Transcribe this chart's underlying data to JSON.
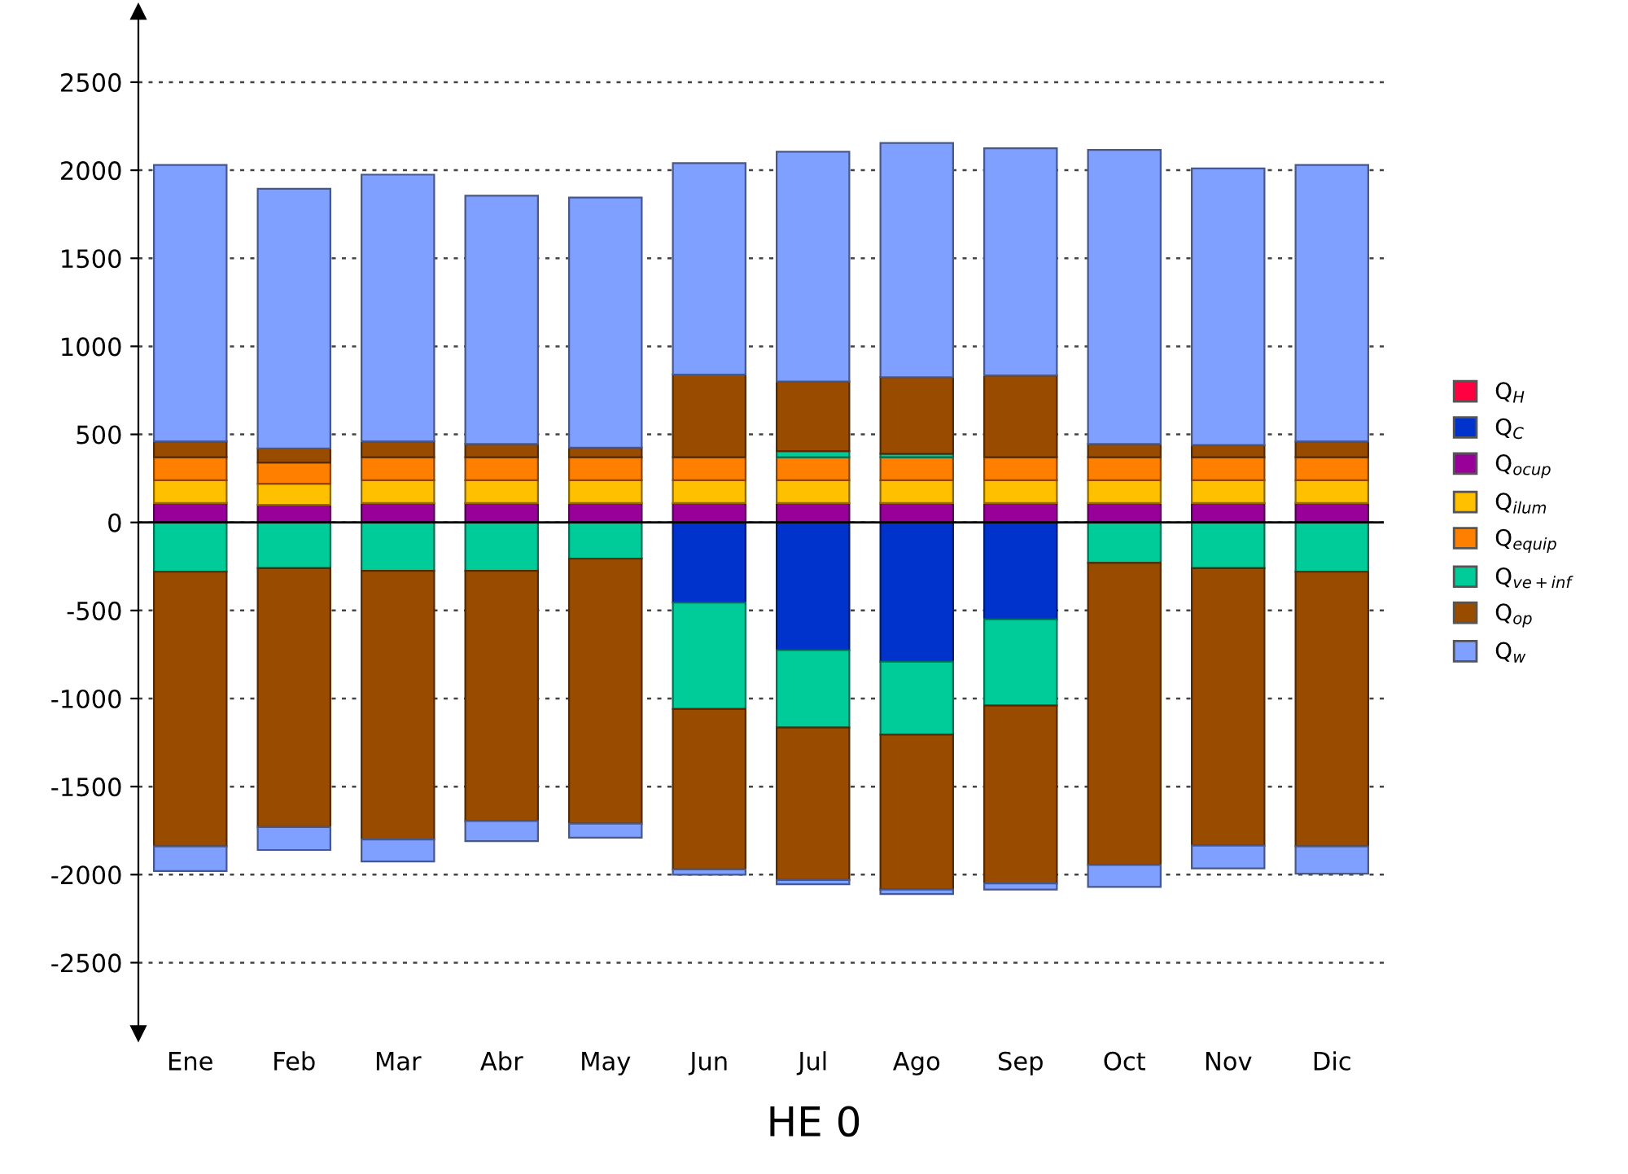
{
  "chart_data": {
    "type": "bar",
    "stacked": true,
    "title": "HE 0",
    "categories": [
      "Ene",
      "Feb",
      "Mar",
      "Abr",
      "May",
      "Jun",
      "Jul",
      "Ago",
      "Sep",
      "Oct",
      "Nov",
      "Dic"
    ],
    "ylim": [
      -2900,
      2900
    ],
    "yticks": [
      -2500,
      -2000,
      -1500,
      -1000,
      -500,
      0,
      500,
      1000,
      1500,
      2000,
      2500
    ],
    "grid": "y",
    "legend": "right",
    "series": [
      {
        "name": "Q$_{H}$",
        "color": "#ff0040",
        "values": [
          null,
          null,
          null,
          null,
          null,
          null,
          null,
          null,
          null,
          null,
          null,
          null
        ]
      },
      {
        "name": "Q$_{C}$",
        "color": "#0033cc",
        "values": [
          null,
          null,
          null,
          null,
          null,
          -455,
          -725,
          -790,
          -550,
          null,
          null,
          null
        ]
      },
      {
        "name": "Q$_{ocup}$",
        "color": "#990099",
        "values": [
          110,
          100,
          110,
          110,
          110,
          110,
          110,
          110,
          110,
          110,
          110,
          110
        ]
      },
      {
        "name": "Q$_{ilum}$",
        "color": "#ffc000",
        "values": [
          130,
          120,
          130,
          130,
          130,
          130,
          130,
          130,
          130,
          130,
          130,
          130
        ]
      },
      {
        "name": "Q$_{equip}$",
        "color": "#ff8000",
        "values": [
          130,
          120,
          130,
          130,
          130,
          130,
          130,
          130,
          130,
          130,
          130,
          130
        ]
      },
      {
        "name": "Q$_{ve+inf}$",
        "color": "#00cc99",
        "values": [
          null,
          null,
          null,
          null,
          null,
          null,
          35,
          20,
          null,
          null,
          null,
          null
        ]
      },
      {
        "name": "Q$_{op}$",
        "color": "#994c00",
        "values": [
          90,
          80,
          90,
          75,
          55,
          470,
          395,
          435,
          465,
          75,
          70,
          90
        ]
      },
      {
        "name": "Q$_{w}$",
        "color": "#80a0ff",
        "values": [
          1570,
          1475,
          1515,
          1410,
          1420,
          1200,
          1305,
          1330,
          1290,
          1670,
          1570,
          1570
        ]
      },
      {
        "color": "#00cc99",
        "values": [
          -280,
          -260,
          -275,
          -275,
          -205,
          -605,
          -440,
          -415,
          -490,
          -230,
          -260,
          -280
        ]
      },
      {
        "color": "#994c00",
        "values": [
          -1560,
          -1470,
          -1525,
          -1420,
          -1505,
          -910,
          -865,
          -880,
          -1010,
          -1715,
          -1575,
          -1560
        ]
      },
      {
        "color": "#80a0ff",
        "values": [
          -140,
          -130,
          -125,
          -115,
          -80,
          -30,
          -25,
          -25,
          -35,
          -125,
          -130,
          -155
        ]
      }
    ]
  }
}
